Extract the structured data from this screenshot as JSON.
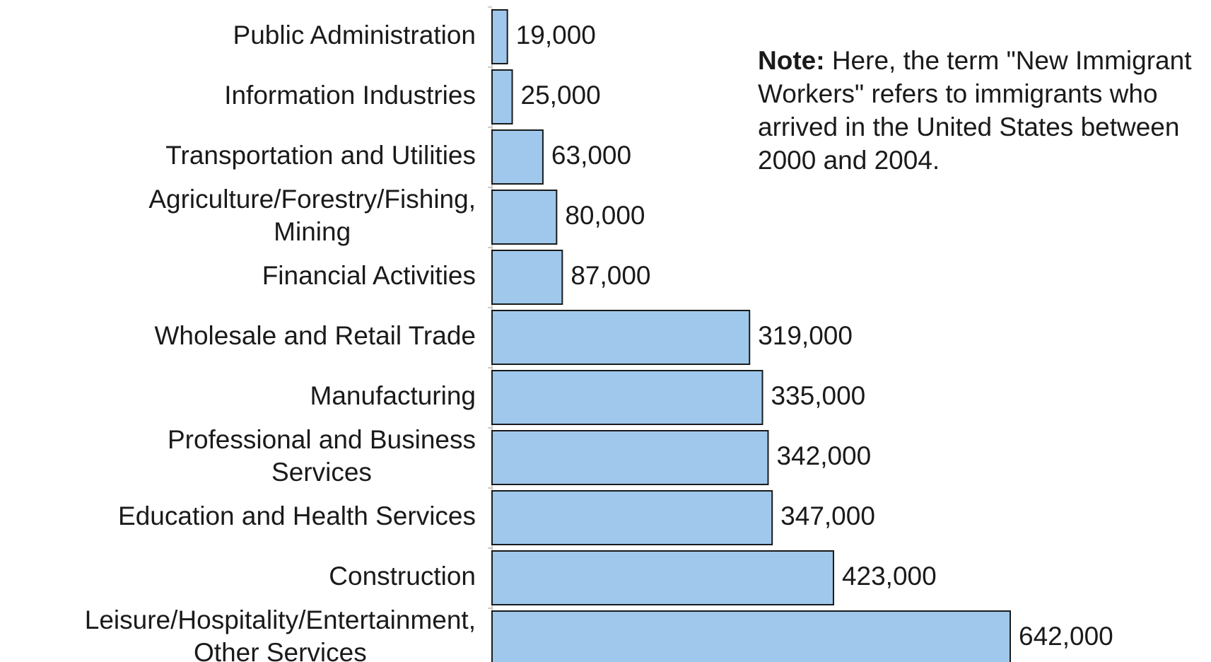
{
  "note": {
    "heading": "Note:",
    "text": " Here, the term \"New Immigrant Workers\" refers to immigrants who arrived in the United States between 2000 and 2004."
  },
  "chart_data": {
    "type": "bar",
    "orientation": "horizontal",
    "categories": [
      [
        "Public Administration"
      ],
      [
        "Information Industries"
      ],
      [
        "Transportation and Utilities"
      ],
      [
        "Agriculture/Forestry/Fishing,",
        "Mining"
      ],
      [
        "Financial Activities"
      ],
      [
        "Wholesale and Retail Trade"
      ],
      [
        "Manufacturing"
      ],
      [
        "Professional and Business",
        "Services"
      ],
      [
        "Education and Health Services"
      ],
      [
        "Construction"
      ],
      [
        "Leisure/Hospitality/Entertainment,",
        "Other Services"
      ]
    ],
    "values": [
      19000,
      25000,
      63000,
      80000,
      87000,
      319000,
      335000,
      342000,
      347000,
      423000,
      642000
    ],
    "value_labels": [
      "19,000",
      "25,000",
      "63,000",
      "80,000",
      "87,000",
      "319,000",
      "335,000",
      "342,000",
      "347,000",
      "423,000",
      "642,000"
    ],
    "bar_color": "#9fc8ec",
    "bar_edge_color": "#1a1a1a",
    "xlim": [
      0,
      642000
    ]
  }
}
